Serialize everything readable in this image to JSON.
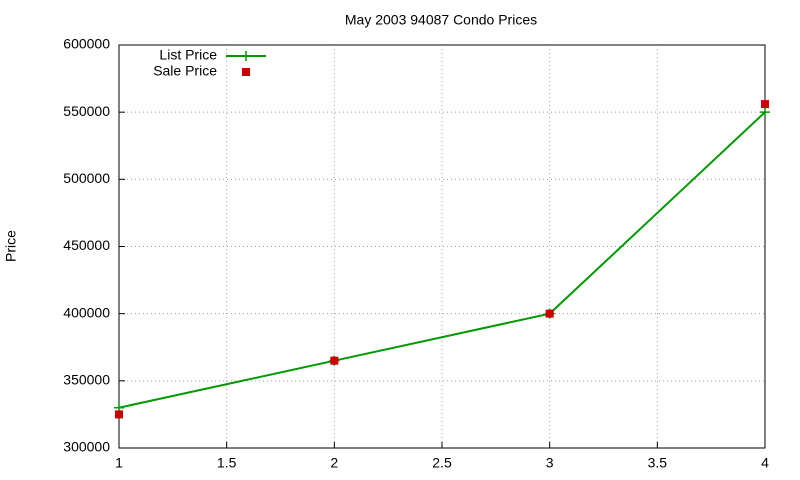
{
  "chart_data": {
    "type": "line",
    "title": "May 2003 94087 Condo Prices",
    "y_label": "Price",
    "x": [
      1,
      2,
      3,
      4
    ],
    "series": [
      {
        "name": "List Price",
        "color": "#009900",
        "style": "linespoints",
        "values": [
          330000,
          365000,
          400000,
          550000
        ]
      },
      {
        "name": "Sale Price",
        "color": "#cc0000",
        "style": "points",
        "values": [
          325000,
          365000,
          400000,
          556000
        ]
      }
    ],
    "xlim": [
      1,
      4
    ],
    "xticks": [
      1,
      1.5,
      2,
      2.5,
      3,
      3.5,
      4
    ],
    "ylim": [
      300000,
      600000
    ],
    "yticks": [
      300000,
      350000,
      400000,
      450000,
      500000,
      550000,
      600000
    ],
    "grid": true,
    "legend": "top-left"
  }
}
